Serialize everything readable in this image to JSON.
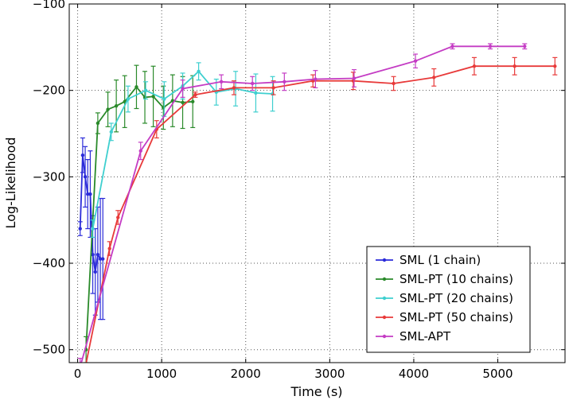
{
  "chart_data": {
    "type": "line",
    "title": "",
    "xlabel": "Time (s)",
    "ylabel": "Log-Likelihood",
    "xlim": [
      -100,
      5800
    ],
    "ylim": [
      -515,
      -100
    ],
    "xticks": [
      0,
      1000,
      2000,
      3000,
      4000,
      5000
    ],
    "xtick_labels": [
      "0",
      "1000",
      "2000",
      "3000",
      "4000",
      "5000"
    ],
    "yticks": [
      -500,
      -400,
      -300,
      -200,
      -100
    ],
    "ytick_labels": [
      "−500",
      "−400",
      "−300",
      "−200",
      "−100"
    ],
    "grid": true,
    "legend_position": "lower-right",
    "series": [
      {
        "name": "SML (1 chain)",
        "color": "#2b2bd9",
        "x": [
          30,
          60,
          90,
          120,
          150,
          180,
          210,
          240,
          270,
          300
        ],
        "y": [
          -360,
          -275,
          -300,
          -320,
          -320,
          -390,
          -410,
          -390,
          -395,
          -395
        ],
        "err": [
          8,
          20,
          35,
          40,
          50,
          45,
          50,
          55,
          70,
          70
        ]
      },
      {
        "name": "SML-PT (10 chains)",
        "color": "#2a8a2a",
        "x": [
          100,
          240,
          360,
          460,
          560,
          700,
          800,
          900,
          1020,
          1130,
          1250,
          1370
        ],
        "y": [
          -500,
          -238,
          -222,
          -218,
          -213,
          -196,
          -208,
          -207,
          -220,
          -212,
          -214,
          -213
        ],
        "err": [
          15,
          12,
          20,
          30,
          30,
          25,
          30,
          35,
          25,
          30,
          30,
          30
        ]
      },
      {
        "name": "SML-PT (20 chains)",
        "color": "#3ecfcf",
        "x": [
          180,
          400,
          600,
          810,
          1030,
          1250,
          1440,
          1650,
          1880,
          2120,
          2320
        ],
        "y": [
          -360,
          -248,
          -210,
          -200,
          -210,
          -195,
          -178,
          -202,
          -198,
          -203,
          -204
        ],
        "err": [
          10,
          10,
          15,
          10,
          20,
          15,
          10,
          15,
          20,
          22,
          20
        ]
      },
      {
        "name": "SML-PT (50 chains)",
        "color": "#e83a3a",
        "x": [
          70,
          380,
          480,
          940,
          1400,
          1860,
          2330,
          2800,
          3280,
          3760,
          4240,
          4720,
          5200,
          5680
        ],
        "y": [
          -530,
          -383,
          -347,
          -245,
          -205,
          -197,
          -197,
          -189,
          -189,
          -192,
          -185,
          -172,
          -172,
          -172
        ],
        "err": [
          10,
          8,
          8,
          10,
          3,
          8,
          8,
          7,
          10,
          8,
          10,
          10,
          10,
          10
        ]
      },
      {
        "name": "SML-APT",
        "color": "#c43cc4",
        "x": [
          30,
          750,
          1250,
          1710,
          2080,
          2460,
          2830,
          3290,
          4020,
          4460,
          4910,
          5320
        ],
        "y": [
          -520,
          -270,
          -198,
          -190,
          -192,
          -190,
          -187,
          -186,
          -166,
          -149,
          -149,
          -149
        ],
        "err": [
          10,
          10,
          10,
          8,
          8,
          10,
          10,
          10,
          8,
          3,
          3,
          3
        ]
      }
    ]
  }
}
